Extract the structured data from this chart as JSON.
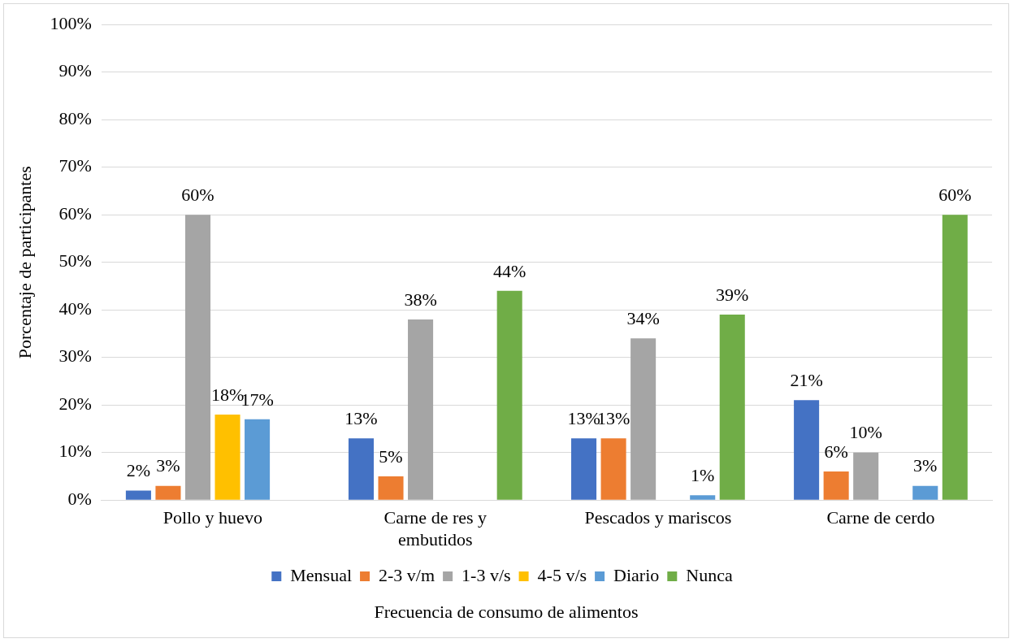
{
  "chart_data": {
    "type": "bar",
    "xlabel": "Frecuencia de consumo de alimentos",
    "ylabel": "Porcentaje de participantes",
    "categories": [
      "Pollo y huevo",
      "Carne de res y embutidos",
      "Pescados y mariscos",
      "Carne de cerdo"
    ],
    "series": [
      {
        "name": "Mensual",
        "color": "#4472c4",
        "values": [
          2,
          13,
          13,
          21
        ],
        "value_labels": [
          "2%",
          "13%",
          "13%",
          "21%"
        ]
      },
      {
        "name": "2-3 v/m",
        "color": "#ed7d31",
        "values": [
          3,
          5,
          13,
          6
        ],
        "value_labels": [
          "3%",
          "5%",
          "13%",
          "6%"
        ]
      },
      {
        "name": "1-3 v/s",
        "color": "#a5a5a5",
        "values": [
          60,
          38,
          34,
          10
        ],
        "value_labels": [
          "60%",
          "38%",
          "34%",
          "10%"
        ]
      },
      {
        "name": "4-5 v/s",
        "color": "#ffc000",
        "values": [
          18,
          null,
          null,
          null
        ],
        "value_labels": [
          "18%",
          null,
          null,
          null
        ]
      },
      {
        "name": "Diario",
        "color": "#5b9bd5",
        "values": [
          17,
          null,
          1,
          3
        ],
        "value_labels": [
          "17%",
          null,
          "1%",
          "3%"
        ]
      },
      {
        "name": "Nunca",
        "color": "#70ad47",
        "values": [
          null,
          44,
          39,
          60
        ],
        "value_labels": [
          null,
          "44%",
          "39%",
          "60%"
        ]
      }
    ],
    "ylim": [
      0,
      100
    ],
    "yticks": [
      {
        "value": 0,
        "label": "0%"
      },
      {
        "value": 10,
        "label": "10%"
      },
      {
        "value": 20,
        "label": "20%"
      },
      {
        "value": 30,
        "label": "30%"
      },
      {
        "value": 40,
        "label": "40%"
      },
      {
        "value": 50,
        "label": "50%"
      },
      {
        "value": 60,
        "label": "60%"
      },
      {
        "value": 70,
        "label": "70%"
      },
      {
        "value": 80,
        "label": "80%"
      },
      {
        "value": 90,
        "label": "90%"
      },
      {
        "value": 100,
        "label": "100%"
      }
    ],
    "grid": "y",
    "legend": "bottom"
  }
}
